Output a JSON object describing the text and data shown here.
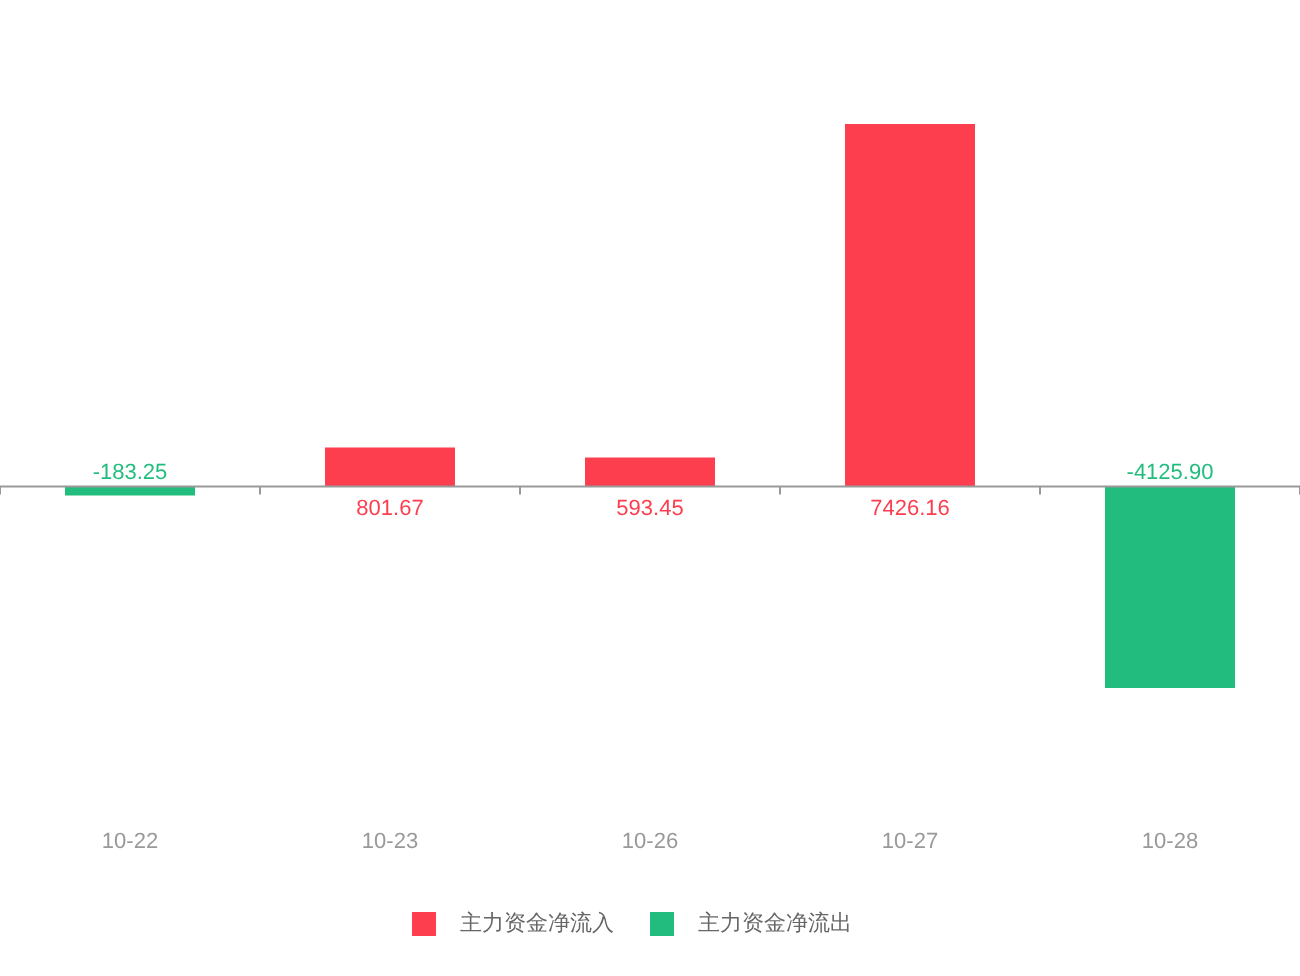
{
  "chart_data": {
    "type": "bar",
    "categories": [
      "10-22",
      "10-23",
      "10-26",
      "10-27",
      "10-28"
    ],
    "series": [
      {
        "name": "主力资金净流入",
        "color": "#fc3e4e",
        "values": [
          null,
          801.67,
          593.45,
          7426.16,
          null
        ],
        "value_labels": [
          null,
          "801.67",
          "593.45",
          "7426.16",
          null
        ]
      },
      {
        "name": "主力资金净流出",
        "color": "#22bd7e",
        "values": [
          -183.25,
          null,
          null,
          null,
          -4125.9
        ],
        "value_labels": [
          "-183.25",
          null,
          null,
          null,
          "-4125.90"
        ]
      }
    ],
    "stacked": true,
    "legend": "bottom",
    "tick_labels": "x"
  }
}
